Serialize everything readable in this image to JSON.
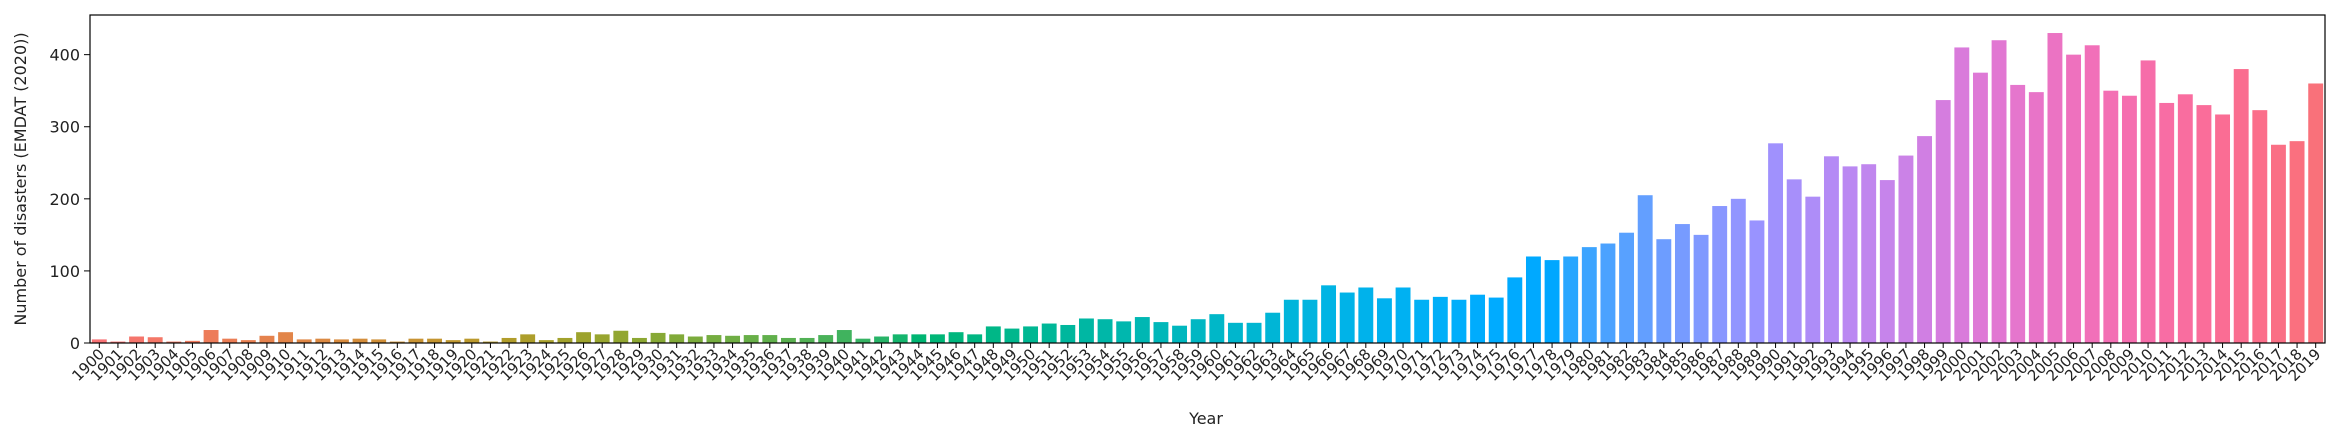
{
  "chart_data": {
    "type": "bar",
    "x_label": "Year",
    "y_label": "Number of disasters (EMDAT (2020))",
    "categories": [
      "1900",
      "1901",
      "1902",
      "1903",
      "1904",
      "1905",
      "1906",
      "1907",
      "1908",
      "1909",
      "1910",
      "1911",
      "1912",
      "1913",
      "1914",
      "1915",
      "1916",
      "1917",
      "1918",
      "1919",
      "1920",
      "1921",
      "1922",
      "1923",
      "1924",
      "1925",
      "1926",
      "1927",
      "1928",
      "1929",
      "1930",
      "1931",
      "1932",
      "1933",
      "1934",
      "1935",
      "1936",
      "1937",
      "1938",
      "1939",
      "1940",
      "1941",
      "1942",
      "1943",
      "1944",
      "1945",
      "1946",
      "1947",
      "1948",
      "1949",
      "1950",
      "1951",
      "1952",
      "1953",
      "1954",
      "1955",
      "1956",
      "1957",
      "1958",
      "1959",
      "1960",
      "1961",
      "1962",
      "1963",
      "1964",
      "1965",
      "1966",
      "1967",
      "1968",
      "1969",
      "1970",
      "1971",
      "1972",
      "1973",
      "1974",
      "1975",
      "1976",
      "1977",
      "1978",
      "1979",
      "1980",
      "1981",
      "1982",
      "1983",
      "1984",
      "1985",
      "1986",
      "1987",
      "1988",
      "1989",
      "1990",
      "1991",
      "1992",
      "1993",
      "1994",
      "1995",
      "1996",
      "1997",
      "1998",
      "1999",
      "2000",
      "2001",
      "2002",
      "2003",
      "2004",
      "2005",
      "2006",
      "2007",
      "2008",
      "2009",
      "2010",
      "2011",
      "2012",
      "2013",
      "2014",
      "2015",
      "2016",
      "2017",
      "2018",
      "2019"
    ],
    "values": [
      5,
      2,
      9,
      8,
      2,
      3,
      18,
      6,
      4,
      10,
      15,
      5,
      6,
      5,
      6,
      5,
      2,
      6,
      6,
      4,
      6,
      2,
      7,
      12,
      4,
      7,
      15,
      12,
      17,
      7,
      14,
      12,
      9,
      11,
      10,
      11,
      11,
      7,
      7,
      11,
      18,
      6,
      9,
      12,
      12,
      12,
      15,
      12,
      23,
      20,
      23,
      27,
      25,
      34,
      33,
      30,
      36,
      29,
      24,
      33,
      40,
      28,
      28,
      42,
      60,
      60,
      80,
      70,
      77,
      62,
      77,
      60,
      64,
      60,
      67,
      63,
      91,
      120,
      115,
      120,
      133,
      138,
      153,
      205,
      144,
      165,
      150,
      190,
      200,
      170,
      277,
      227,
      203,
      259,
      245,
      248,
      226,
      260,
      287,
      337,
      410,
      375,
      420,
      358,
      348,
      430,
      400,
      413,
      350,
      343,
      392,
      333,
      345,
      330,
      317,
      380,
      323,
      275,
      280,
      360
    ],
    "palette": "husl",
    "ylim": [
      0,
      455
    ],
    "yticks": [
      0,
      100,
      200,
      300,
      400
    ],
    "grid": false
  }
}
